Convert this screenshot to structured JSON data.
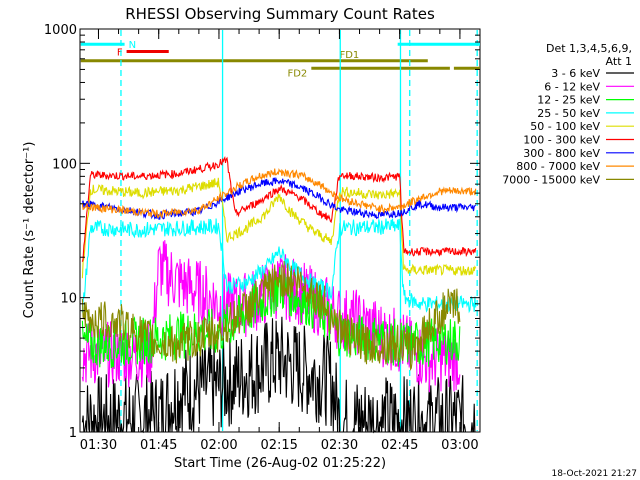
{
  "chart_data": {
    "type": "line",
    "title": "RHESSI Observing Summary Count Rates",
    "xlabel": "Start Time (26-Aug-02 01:25:22)",
    "ylabel": "Count Rate (s⁻¹ detector⁻¹)",
    "yscale": "log",
    "ylim": [
      1,
      1000
    ],
    "xlim_minutes": [
      85.4,
      185
    ],
    "x_ticks": [
      {
        "label": "01:30",
        "minute": 90
      },
      {
        "label": "01:45",
        "minute": 105
      },
      {
        "label": "02:00",
        "minute": 120
      },
      {
        "label": "02:15",
        "minute": 135
      },
      {
        "label": "02:30",
        "minute": 150
      },
      {
        "label": "02:45",
        "minute": 165
      },
      {
        "label": "03:00",
        "minute": 180
      }
    ],
    "y_ticks": [
      {
        "label": "1",
        "value": 1
      },
      {
        "label": "10",
        "value": 10
      },
      {
        "label": "100",
        "value": 100
      },
      {
        "label": "1000",
        "value": 1000
      }
    ],
    "legend_header": [
      "Det 1,3,4,5,6,9,",
      "Att 1"
    ],
    "legend_position": "right",
    "series": [
      {
        "name": "3 - 6 keV",
        "color": "#000000",
        "x": [
          86,
          105,
          110,
          118,
          120,
          128,
          135,
          142,
          148,
          150,
          160,
          165,
          170,
          180,
          184
        ],
        "y": [
          1.2,
          1.3,
          2.0,
          2.2,
          2.2,
          2.8,
          3.5,
          2.8,
          2.4,
          1.2,
          1.2,
          1.2,
          1.2,
          1.2,
          1.2
        ]
      },
      {
        "name": "6 - 12 keV",
        "color": "#ff00ff",
        "x": [
          86,
          103,
          105,
          110,
          115,
          120,
          125,
          130,
          135,
          140,
          145,
          148,
          150,
          155,
          160,
          166,
          168,
          172,
          176,
          180
        ],
        "y": [
          3.8,
          3.8,
          17,
          13,
          11,
          9,
          8.5,
          10,
          12.5,
          11,
          9,
          8,
          7,
          6.5,
          5.5,
          4.5,
          4,
          3.5,
          3.5,
          3.5
        ]
      },
      {
        "name": "12 - 25 keV",
        "color": "#00ff00",
        "x": [
          86,
          95,
          105,
          115,
          120,
          125,
          130,
          135,
          140,
          145,
          150,
          155,
          160,
          165,
          170,
          175,
          180
        ],
        "y": [
          4.5,
          4.5,
          5.0,
          5.5,
          5.5,
          7.0,
          9.0,
          12.0,
          10.0,
          8.0,
          5.5,
          5.0,
          5.0,
          4.5,
          4.5,
          4.8,
          4.8
        ]
      },
      {
        "name": "25 - 50 keV",
        "color": "#00ffff",
        "x": [
          86,
          88,
          100,
          110,
          120,
          122,
          127,
          132,
          135,
          138,
          143,
          148,
          150,
          165,
          166,
          170,
          175,
          180,
          184
        ],
        "y": [
          7.5,
          33,
          32,
          33,
          34,
          12,
          13,
          17,
          22,
          17,
          13,
          11,
          33,
          34,
          10,
          9,
          9,
          9,
          9
        ]
      },
      {
        "name": "50 - 100 keV",
        "color": "#dddd00",
        "x": [
          86,
          88,
          100,
          110,
          118,
          120,
          122,
          127,
          132,
          135,
          138,
          143,
          148,
          150,
          160,
          165,
          166,
          172,
          184
        ],
        "y": [
          15,
          64,
          60,
          63,
          70,
          72,
          28,
          33,
          43,
          58,
          43,
          32,
          26,
          62,
          58,
          60,
          16,
          16,
          16
        ]
      },
      {
        "name": "100 - 300 keV",
        "color": "#ff0000",
        "x": [
          86,
          88,
          100,
          110,
          118,
          122,
          124,
          130,
          135,
          140,
          145,
          148,
          150,
          160,
          165,
          166,
          172,
          184
        ],
        "y": [
          18,
          82,
          80,
          84,
          95,
          105,
          42,
          52,
          65,
          56,
          43,
          38,
          82,
          78,
          80,
          22,
          22,
          22
        ]
      },
      {
        "name": "300 - 800 keV",
        "color": "#0000ff",
        "x": [
          86,
          95,
          105,
          115,
          120,
          125,
          130,
          135,
          140,
          145,
          150,
          155,
          160,
          165,
          170,
          175,
          180,
          184
        ],
        "y": [
          50,
          46,
          41,
          44,
          52,
          62,
          70,
          74,
          67,
          56,
          45,
          43,
          41,
          43,
          50,
          47,
          47,
          47
        ]
      },
      {
        "name": "800 - 7000 keV",
        "color": "#ff8800",
        "x": [
          86,
          95,
          105,
          115,
          120,
          125,
          130,
          135,
          140,
          145,
          150,
          155,
          160,
          165,
          170,
          175,
          180,
          184
        ],
        "y": [
          48,
          45,
          42,
          45,
          55,
          68,
          80,
          87,
          82,
          70,
          55,
          50,
          46,
          47,
          55,
          62,
          62,
          62
        ]
      },
      {
        "name": "7000 - 15000 keV",
        "color": "#888800",
        "x": [
          86,
          95,
          105,
          110,
          115,
          120,
          125,
          130,
          135,
          140,
          145,
          150,
          155,
          160,
          165,
          168,
          172,
          176,
          180
        ],
        "y": [
          7,
          6.5,
          4.5,
          4.5,
          5.0,
          5.5,
          7.5,
          10.0,
          14.0,
          13.0,
          10.0,
          6.0,
          4.5,
          4.5,
          4.5,
          4.0,
          6.0,
          8.0,
          9.0
        ]
      }
    ],
    "flag_bars": [
      {
        "label": "N",
        "color": "#00ffff",
        "segments": [
          [
            85.6,
            96.5
          ],
          [
            164.5,
            185
          ]
        ],
        "level": 770
      },
      {
        "label": "F",
        "color": "#ee0000",
        "segments": [
          [
            97,
            107.5
          ]
        ],
        "level": 680
      },
      {
        "label": "FD1",
        "color": "#888800",
        "segments": [
          [
            85.6,
            172
          ]
        ],
        "level": 580
      },
      {
        "label": "FD2",
        "color": "#888800",
        "segments": [
          [
            143,
            177.5
          ],
          [
            178.5,
            185
          ]
        ],
        "level": 510
      }
    ],
    "vertical_markers": [
      {
        "minute": 95.6,
        "color": "#00ffff",
        "style": "dashed"
      },
      {
        "minute": 120.9,
        "color": "#00ffff",
        "style": "solid"
      },
      {
        "minute": 150.2,
        "color": "#00ffff",
        "style": "solid"
      },
      {
        "minute": 165.2,
        "color": "#00ffff",
        "style": "solid"
      },
      {
        "minute": 167.5,
        "color": "#00ffff",
        "style": "dashed"
      },
      {
        "minute": 184.3,
        "color": "#00ffff",
        "style": "dashed"
      }
    ]
  },
  "timestamp": "18-Oct-2021 21:27"
}
